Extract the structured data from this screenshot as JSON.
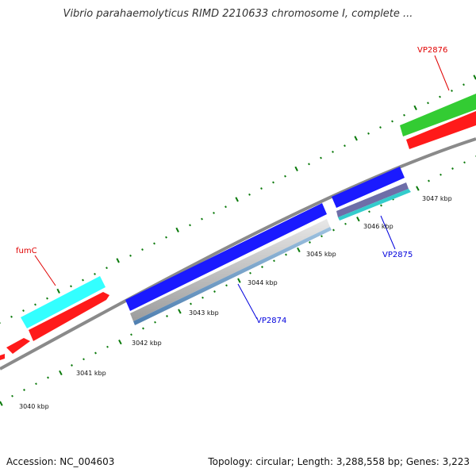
{
  "title": "Vibrio parahaemolyticus RIMD 2210633 chromosome I, complete ...",
  "accession": "Accession: NC_004603",
  "summary": "Topology: circular; Length: 3,288,558 bp; Genes: 3,223",
  "ticks": [
    "3040 kbp",
    "3041 kbp",
    "3042 kbp",
    "3043 kbp",
    "3044 kbp",
    "3045 kbp",
    "3046 kbp",
    "3047 kbp"
  ],
  "genes": {
    "fumC": "fumC",
    "vp2874": "VP2874",
    "vp2875": "VP2875",
    "vp2876": "VP2876"
  },
  "colors": {
    "backbone": "#8a8a8a",
    "tick": "#0b7a0b",
    "forward_gene": "#ff1a1a",
    "cyan_feature": "#33ffff",
    "green_feature": "#33cc33",
    "blue_gene": "#1a1aff",
    "label_red": "#e00000",
    "label_blue": "#0000dd"
  }
}
